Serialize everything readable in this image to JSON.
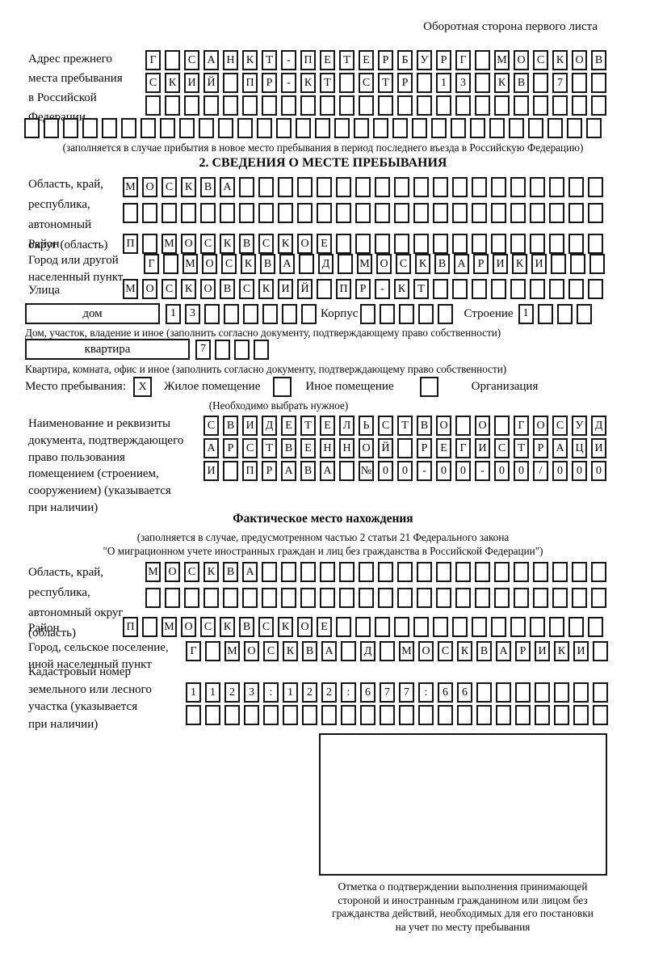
{
  "header_note": "Оборотная сторона первого листа",
  "prev_address": {
    "label_lines": [
      "Адрес прежнего",
      "места пребывания",
      "в Российской",
      "Федерации"
    ],
    "rows": [
      {
        "t": "Г САНКТ-ПЕТЕРБУРГ МОСКОВ",
        "n": 24
      },
      {
        "t": "СКИЙ ПР-КТ СТР 13 КВ 7",
        "n": 24
      },
      {
        "t": "",
        "n": 24
      },
      {
        "t": "",
        "n": 30
      }
    ],
    "caption": "(заполняется в случае прибытия в новое место пребывания в период последнего въезда в Российскую Федерацию)"
  },
  "section2": {
    "title": "2. СВЕДЕНИЯ О МЕСТЕ ПРЕБЫВАНИЯ",
    "oblast": {
      "label_lines": [
        "Область, край,",
        "республика,",
        "автономный",
        "округ (область)"
      ],
      "rows": [
        {
          "t": "МОСКВА",
          "n": 25
        },
        {
          "t": "",
          "n": 25
        }
      ]
    },
    "raion": {
      "label": "Район",
      "row": {
        "t": "П МОСКВСКОЕ",
        "n": 25
      }
    },
    "gorod": {
      "label_lines": [
        "Город или другой",
        "населенный пункт"
      ],
      "row": {
        "t": "Г МОСКВА Д МОСКВАРИКИ",
        "n": 24
      }
    },
    "ulitsa": {
      "label": "Улица",
      "row": {
        "t": "МОСКОВСКИЙ ПР-КТ",
        "n": 25
      }
    },
    "dom": {
      "box_label": "дом",
      "cells": {
        "t": "13",
        "n": 8
      },
      "korpus_label": "Корпус",
      "korpus_cells": {
        "t": "",
        "n": 5
      },
      "stroenie_label": "Строение",
      "stroenie_cells": {
        "t": "1",
        "n": 4
      },
      "caption": "Дом, участок, владение и иное (заполнить согласно документу, подтверждающему право собственности)"
    },
    "kvartira": {
      "box_label": "квартира",
      "cells": {
        "t": "7",
        "n": 4
      },
      "caption": "Квартира, комната, офис и иное (заполнить согласно документу, подтверждающему право собственности)"
    },
    "mesto": {
      "label": "Место пребывания:",
      "options": [
        {
          "label": "Жилое помещение",
          "box": {
            "t": "X",
            "n": 1
          }
        },
        {
          "label": "Иное помещение",
          "box": {
            "t": "",
            "n": 1
          }
        },
        {
          "label": "Организация",
          "box": {
            "t": "",
            "n": 1
          }
        }
      ],
      "caption": "(Необходимо выбрать нужное)"
    },
    "doc": {
      "label_lines": [
        "Наименование и реквизиты",
        "документа, подтверждающего",
        "право пользования",
        "помещением (строением,",
        "сооружением) (указывается",
        "при наличии)"
      ],
      "rows": [
        {
          "t": "СВИДЕТЕЛЬСТВО О ГОСУД",
          "n": 21
        },
        {
          "t": "АРСТВЕННОЙ РЕГИСТРАЦИ",
          "n": 21
        },
        {
          "t": "И ПРАВА №00-00-00/000",
          "n": 21
        }
      ]
    }
  },
  "fakt": {
    "title": "Фактическое место нахождения",
    "caption_lines": [
      "(заполняется в случае, предусмотренном частью 2 статьи 21 Федерального закона",
      "\"О миграционном учете иностранных граждан и лиц без гражданства в Российской Федерации\")"
    ],
    "oblast": {
      "label_lines": [
        "Область, край,",
        "республика,",
        "автономный округ",
        "(область)"
      ],
      "rows": [
        {
          "t": "МОСКВА",
          "n": 24
        },
        {
          "t": "",
          "n": 24
        }
      ]
    },
    "raion": {
      "label": "Район",
      "row": {
        "t": "П МОСКВСКОЕ",
        "n": 25
      }
    },
    "gorod": {
      "label_lines": [
        "Город, сельское поселение,",
        "иной населенный пункт"
      ],
      "row": {
        "t": "Г МОСКВА Д МОСКВАРИКИ",
        "n": 22
      }
    },
    "kadastr": {
      "label_lines": [
        "Кадастровый номер",
        "земельного или лесного",
        "участка (указывается",
        "при наличии)"
      ],
      "rows": [
        {
          "t": "1123:122:677:66",
          "n": 22
        },
        {
          "t": "",
          "n": 22
        }
      ]
    },
    "stamp_caption_lines": [
      "Отметка о подтверждении выполнения принимающей",
      "стороной и иностранным гражданином или лицом без",
      "гражданства действий, необходимых для его постановки",
      "на учет по месту пребывания"
    ]
  }
}
